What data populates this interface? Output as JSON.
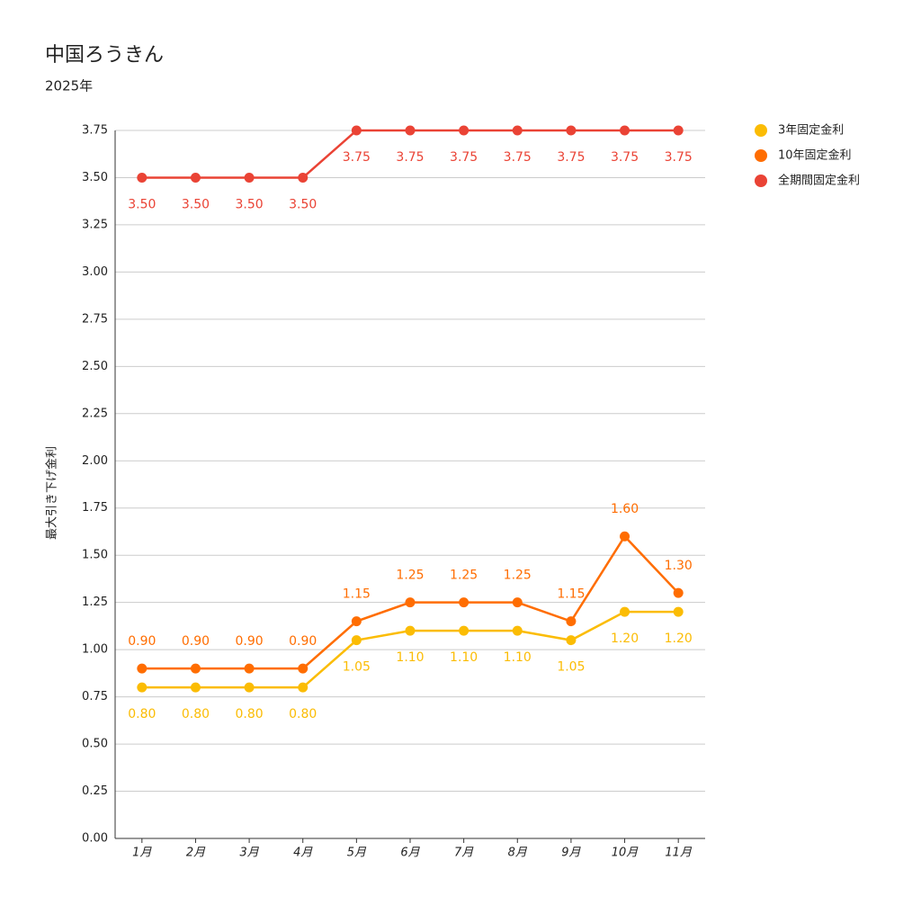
{
  "chart_data": {
    "type": "line",
    "title": "中国ろうきん",
    "subtitle": "2025年",
    "y_label": "最大引き下げ金利",
    "categories": [
      "1月",
      "2月",
      "3月",
      "4月",
      "5月",
      "6月",
      "7月",
      "8月",
      "9月",
      "10月",
      "11月"
    ],
    "series": [
      {
        "name": "3年固定金利",
        "color": "#fbbc04",
        "values": [
          0.8,
          0.8,
          0.8,
          0.8,
          1.05,
          1.1,
          1.1,
          1.1,
          1.05,
          1.2,
          1.2
        ],
        "value_labels": [
          "0.80",
          "0.80",
          "0.80",
          "0.80",
          "1.05",
          "1.10",
          "1.10",
          "1.10",
          "1.05",
          "1.20",
          "1.20"
        ]
      },
      {
        "name": "10年固定金利",
        "color": "#ff6d01",
        "values": [
          0.9,
          0.9,
          0.9,
          0.9,
          1.15,
          1.25,
          1.25,
          1.25,
          1.15,
          1.6,
          1.3
        ],
        "value_labels": [
          "0.90",
          "0.90",
          "0.90",
          "0.90",
          "1.15",
          "1.25",
          "1.25",
          "1.25",
          "1.15",
          "1.60",
          "1.30"
        ]
      },
      {
        "name": "全期間固定金利",
        "color": "#ea4335",
        "values": [
          3.5,
          3.5,
          3.5,
          3.5,
          3.75,
          3.75,
          3.75,
          3.75,
          3.75,
          3.75,
          3.75
        ],
        "value_labels": [
          "3.50",
          "3.50",
          "3.50",
          "3.50",
          "3.75",
          "3.75",
          "3.75",
          "3.75",
          "3.75",
          "3.75",
          "3.75"
        ]
      }
    ],
    "ylim": [
      0,
      3.75
    ],
    "yticks": [
      {
        "value": 0,
        "label": "0.00"
      },
      0.25,
      {
        "value": 0.5,
        "label": "0.50"
      },
      0.75,
      {
        "value": 1,
        "label": "1.00"
      },
      1.25,
      {
        "value": 1.5,
        "label": "1.50"
      },
      1.75,
      {
        "value": 2,
        "label": "2.00"
      },
      2.25,
      {
        "value": 2.5,
        "label": "2.50"
      },
      2.75,
      {
        "value": 3,
        "label": "3.00"
      },
      3.25,
      {
        "value": 3.5,
        "label": "3.50"
      },
      3.75
    ],
    "grid": true,
    "legend": "right"
  }
}
